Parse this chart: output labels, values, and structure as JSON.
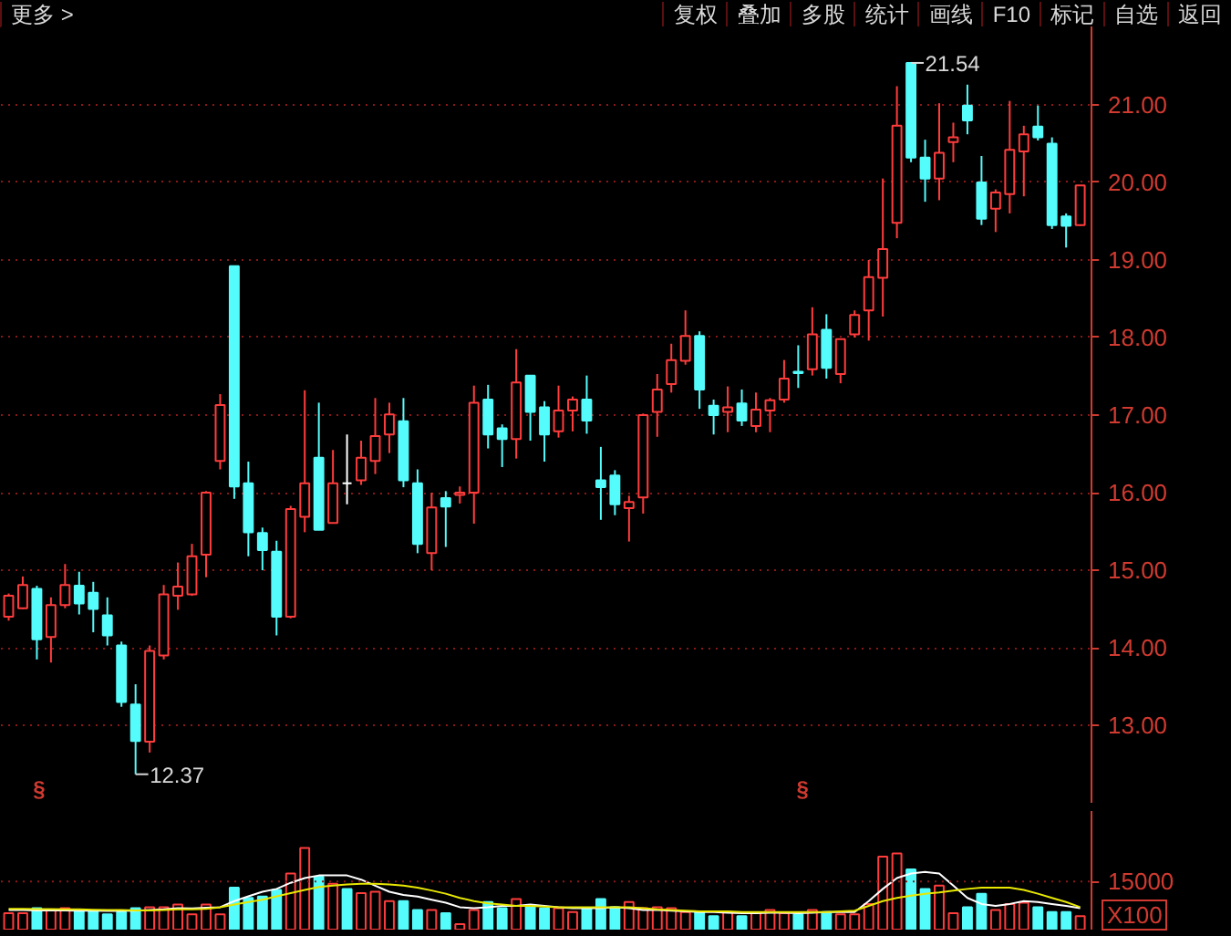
{
  "chart_data": [
    {
      "type": "other",
      "annotations": [
        "更多 >",
        "复权",
        "叠加",
        "多股",
        "统计",
        "画线",
        "F10",
        "标记",
        "自选",
        "返回"
      ]
    },
    {
      "type": "candlestick",
      "tick_labels": "y",
      "grid": "y",
      "categories": [
        null,
        null,
        null,
        null,
        null,
        null,
        null,
        null,
        null,
        null,
        null,
        null,
        null,
        null,
        null,
        null,
        null,
        null,
        null,
        null,
        null,
        null,
        null,
        null,
        null,
        null,
        null,
        null,
        null,
        null,
        null,
        null,
        null,
        null,
        null,
        null,
        null,
        null,
        null,
        null,
        null,
        null,
        null,
        null,
        null,
        null,
        null,
        null,
        null,
        null,
        null,
        null,
        null,
        null,
        null,
        null,
        null,
        null,
        null,
        null,
        null,
        null,
        null,
        null,
        null,
        null,
        null,
        null,
        null,
        null,
        null,
        null,
        null,
        null,
        null,
        null,
        null
      ],
      "ylim": [
        11.99,
        22.01
      ],
      "yticks": [
        {
          "value": 13,
          "label": "13.00"
        },
        {
          "value": 14,
          "label": "14.00"
        },
        {
          "value": 15,
          "label": "15.00"
        },
        {
          "value": 16,
          "label": "16.00"
        },
        {
          "value": 17,
          "label": "17.00"
        },
        {
          "value": 18,
          "label": "18.00"
        },
        {
          "value": 19,
          "label": "19.00"
        },
        {
          "value": 20,
          "label": "20.00"
        },
        {
          "value": 21,
          "label": "21.00"
        }
      ],
      "ohlc": [
        [
          14.4,
          14.7,
          14.35,
          14.67
        ],
        [
          14.51,
          14.92,
          14.5,
          14.81
        ],
        [
          14.76,
          14.8,
          13.85,
          14.11
        ],
        [
          14.14,
          14.65,
          13.81,
          14.55
        ],
        [
          14.55,
          15.08,
          14.51,
          14.81
        ],
        [
          14.8,
          14.98,
          14.43,
          14.57
        ],
        [
          14.71,
          14.85,
          14.2,
          14.5
        ],
        [
          14.42,
          14.65,
          14.03,
          14.16
        ],
        [
          14.03,
          14.08,
          13.24,
          13.3
        ],
        [
          13.27,
          13.53,
          12.37,
          12.8
        ],
        [
          12.79,
          14.03,
          12.65,
          13.96
        ],
        [
          13.9,
          14.81,
          13.85,
          14.69
        ],
        [
          14.67,
          15.1,
          14.49,
          14.79
        ],
        [
          14.69,
          15.34,
          14.67,
          15.18
        ],
        [
          15.2,
          16.02,
          14.91,
          16.0
        ],
        [
          16.41,
          17.27,
          16.3,
          17.13
        ],
        [
          18.92,
          18.92,
          15.92,
          16.08
        ],
        [
          16.12,
          16.4,
          15.18,
          15.49
        ],
        [
          15.48,
          15.55,
          15.0,
          15.26
        ],
        [
          15.24,
          15.38,
          14.16,
          14.4
        ],
        [
          14.4,
          15.83,
          14.38,
          15.79
        ],
        [
          15.69,
          17.32,
          15.49,
          16.12
        ],
        [
          16.45,
          17.16,
          15.52,
          15.52
        ],
        [
          15.61,
          16.55,
          15.61,
          16.12
        ],
        [
          16.12,
          16.75,
          15.85,
          16.12
        ],
        [
          16.16,
          16.67,
          16.1,
          16.45
        ],
        [
          16.41,
          17.22,
          16.24,
          16.73
        ],
        [
          16.75,
          17.16,
          16.51,
          17.01
        ],
        [
          16.92,
          17.22,
          16.07,
          16.16
        ],
        [
          16.12,
          16.3,
          15.22,
          15.34
        ],
        [
          15.22,
          16.0,
          15.0,
          15.81
        ],
        [
          15.93,
          16.02,
          15.3,
          15.82
        ],
        [
          15.97,
          16.08,
          15.86,
          16.0
        ],
        [
          16.0,
          17.38,
          15.6,
          17.16
        ],
        [
          17.2,
          17.39,
          16.57,
          16.75
        ],
        [
          16.83,
          16.88,
          16.33,
          16.69
        ],
        [
          16.69,
          17.85,
          16.44,
          17.42
        ],
        [
          17.51,
          17.51,
          16.67,
          17.04
        ],
        [
          17.1,
          17.18,
          16.4,
          16.75
        ],
        [
          16.79,
          17.38,
          16.71,
          17.06
        ],
        [
          17.06,
          17.24,
          16.79,
          17.2
        ],
        [
          17.2,
          17.51,
          16.76,
          16.93
        ],
        [
          16.16,
          16.59,
          15.65,
          16.07
        ],
        [
          16.22,
          16.29,
          15.71,
          15.85
        ],
        [
          15.8,
          15.96,
          15.37,
          15.88
        ],
        [
          15.94,
          17.02,
          15.73,
          17.0
        ],
        [
          17.04,
          17.53,
          16.72,
          17.33
        ],
        [
          17.4,
          17.92,
          17.29,
          17.71
        ],
        [
          17.7,
          18.35,
          17.65,
          18.02
        ],
        [
          18.02,
          18.08,
          17.08,
          17.33
        ],
        [
          17.12,
          17.2,
          16.75,
          17.0
        ],
        [
          17.04,
          17.37,
          16.78,
          17.1
        ],
        [
          17.15,
          17.33,
          16.86,
          16.93
        ],
        [
          16.86,
          17.29,
          16.78,
          17.07
        ],
        [
          17.06,
          17.22,
          16.78,
          17.19
        ],
        [
          17.2,
          17.71,
          17.16,
          17.47
        ],
        [
          17.56,
          17.9,
          17.35,
          17.54
        ],
        [
          17.59,
          18.39,
          17.51,
          18.04
        ],
        [
          18.1,
          18.3,
          17.47,
          17.61
        ],
        [
          17.53,
          17.98,
          17.41,
          17.98
        ],
        [
          18.04,
          18.35,
          18.0,
          18.29
        ],
        [
          18.35,
          19.0,
          17.96,
          18.78
        ],
        [
          18.77,
          20.05,
          18.27,
          19.14
        ],
        [
          19.48,
          21.24,
          19.28,
          20.73
        ],
        [
          21.54,
          21.54,
          20.26,
          20.32
        ],
        [
          20.32,
          20.55,
          19.75,
          20.05
        ],
        [
          20.05,
          21.02,
          19.77,
          20.38
        ],
        [
          20.52,
          20.77,
          20.26,
          20.58
        ],
        [
          20.99,
          21.26,
          20.62,
          20.8
        ],
        [
          20.0,
          20.34,
          19.45,
          19.53
        ],
        [
          19.66,
          19.91,
          19.36,
          19.87
        ],
        [
          19.85,
          21.05,
          19.6,
          20.42
        ],
        [
          20.4,
          20.73,
          19.82,
          20.62
        ],
        [
          20.72,
          20.99,
          20.54,
          20.58
        ],
        [
          20.5,
          20.58,
          19.4,
          19.45
        ],
        [
          19.56,
          19.6,
          19.16,
          19.44
        ],
        [
          19.45,
          19.96,
          19.44,
          19.96
        ]
      ],
      "colors": [
        "#ff3c3c",
        "#ff3c3c",
        "#54fcfc",
        "#ff3c3c",
        "#ff3c3c",
        "#54fcfc",
        "#54fcfc",
        "#54fcfc",
        "#54fcfc",
        "#54fcfc",
        "#ff3c3c",
        "#ff3c3c",
        "#ff3c3c",
        "#ff3c3c",
        "#ff3c3c",
        "#ff3c3c",
        "#54fcfc",
        "#54fcfc",
        "#54fcfc",
        "#54fcfc",
        "#ff3c3c",
        "#ff3c3c",
        "#54fcfc",
        "#ff3c3c",
        "#ffffff",
        "#ff3c3c",
        "#ff3c3c",
        "#ff3c3c",
        "#54fcfc",
        "#54fcfc",
        "#ff3c3c",
        "#54fcfc",
        "#ff3c3c",
        "#ff3c3c",
        "#54fcfc",
        "#54fcfc",
        "#ff3c3c",
        "#54fcfc",
        "#54fcfc",
        "#ff3c3c",
        "#ff3c3c",
        "#54fcfc",
        "#54fcfc",
        "#54fcfc",
        "#ff3c3c",
        "#ff3c3c",
        "#ff3c3c",
        "#ff3c3c",
        "#ff3c3c",
        "#54fcfc",
        "#54fcfc",
        "#ff3c3c",
        "#54fcfc",
        "#ff3c3c",
        "#ff3c3c",
        "#ff3c3c",
        "#54fcfc",
        "#ff3c3c",
        "#54fcfc",
        "#ff3c3c",
        "#ff3c3c",
        "#ff3c3c",
        "#ff3c3c",
        "#ff3c3c",
        "#54fcfc",
        "#54fcfc",
        "#ff3c3c",
        "#ff3c3c",
        "#54fcfc",
        "#54fcfc",
        "#ff3c3c",
        "#ff3c3c",
        "#ff3c3c",
        "#54fcfc",
        "#54fcfc",
        "#54fcfc",
        "#ff3c3c"
      ],
      "annotations": [
        "12.37",
        "21.54",
        "§",
        "§"
      ]
    },
    {
      "type": "bar",
      "tick_labels": "y",
      "ref_lines": [
        {
          "axis": "y",
          "value": 15000
        }
      ],
      "categories": [
        null,
        null,
        null,
        null,
        null,
        null,
        null,
        null,
        null,
        null,
        null,
        null,
        null,
        null,
        null,
        null,
        null,
        null,
        null,
        null,
        null,
        null,
        null,
        null,
        null,
        null,
        null,
        null,
        null,
        null,
        null,
        null,
        null,
        null,
        null,
        null,
        null,
        null,
        null,
        null,
        null,
        null,
        null,
        null,
        null,
        null,
        null,
        null,
        null,
        null,
        null,
        null,
        null,
        null,
        null,
        null,
        null,
        null,
        null,
        null,
        null,
        null,
        null,
        null,
        null,
        null,
        null,
        null,
        null,
        null,
        null,
        null,
        null,
        null,
        null,
        null,
        null
      ],
      "ylim": [
        0,
        37000
      ],
      "yticks": [
        15000
      ],
      "series": [
        {
          "type": "bar",
          "values": [
            5100,
            5100,
            6700,
            6100,
            6700,
            5700,
            5700,
            4800,
            5500,
            6700,
            7000,
            7000,
            7800,
            4800,
            7800,
            4800,
            13100,
            9900,
            10300,
            12400,
            17500,
            25500,
            16500,
            14300,
            12700,
            11400,
            11800,
            8900,
            8900,
            6100,
            6100,
            5100,
            1700,
            6100,
            8600,
            6700,
            9500,
            7400,
            6700,
            6700,
            5500,
            6700,
            9500,
            7000,
            8600,
            6700,
            7000,
            6700,
            5500,
            5500,
            4200,
            5500,
            4200,
            5100,
            6100,
            5100,
            4800,
            6100,
            5500,
            4800,
            4800,
            8000,
            22800,
            23800,
            18800,
            12700,
            13700,
            5100,
            7000,
            11200,
            6100,
            8000,
            8400,
            7000,
            5500,
            5500,
            4200
          ],
          "colors": [
            "#ff3c3c",
            "#ff3c3c",
            "#54fcfc",
            "#ff3c3c",
            "#ff3c3c",
            "#54fcfc",
            "#54fcfc",
            "#54fcfc",
            "#54fcfc",
            "#54fcfc",
            "#ff3c3c",
            "#ff3c3c",
            "#ff3c3c",
            "#ff3c3c",
            "#ff3c3c",
            "#ff3c3c",
            "#54fcfc",
            "#54fcfc",
            "#54fcfc",
            "#54fcfc",
            "#ff3c3c",
            "#ff3c3c",
            "#54fcfc",
            "#ff3c3c",
            "#54fcfc",
            "#ff3c3c",
            "#ff3c3c",
            "#ff3c3c",
            "#54fcfc",
            "#54fcfc",
            "#ff3c3c",
            "#54fcfc",
            "#ff3c3c",
            "#ff3c3c",
            "#54fcfc",
            "#54fcfc",
            "#ff3c3c",
            "#54fcfc",
            "#54fcfc",
            "#ff3c3c",
            "#ff3c3c",
            "#54fcfc",
            "#54fcfc",
            "#54fcfc",
            "#ff3c3c",
            "#ff3c3c",
            "#ff3c3c",
            "#ff3c3c",
            "#ff3c3c",
            "#54fcfc",
            "#54fcfc",
            "#ff3c3c",
            "#54fcfc",
            "#ff3c3c",
            "#ff3c3c",
            "#ff3c3c",
            "#54fcfc",
            "#ff3c3c",
            "#54fcfc",
            "#ff3c3c",
            "#ff3c3c",
            "#ff3c3c",
            "#ff3c3c",
            "#ff3c3c",
            "#54fcfc",
            "#54fcfc",
            "#ff3c3c",
            "#ff3c3c",
            "#54fcfc",
            "#54fcfc",
            "#ff3c3c",
            "#ff3c3c",
            "#ff3c3c",
            "#54fcfc",
            "#54fcfc",
            "#54fcfc",
            "#ff3c3c"
          ]
        },
        {
          "type": "line",
          "color": "#ffffff",
          "values": [
            6100,
            6100,
            6000,
            6000,
            6000,
            5900,
            5900,
            5800,
            5800,
            5900,
            6100,
            6300,
            6700,
            6600,
            6800,
            7000,
            8900,
            10400,
            11800,
            12700,
            14600,
            16100,
            16900,
            16900,
            16900,
            15600,
            13700,
            11800,
            10800,
            10300,
            9300,
            8400,
            7000,
            6700,
            7000,
            7400,
            7400,
            7800,
            7400,
            7000,
            6700,
            6700,
            6700,
            7000,
            6700,
            6100,
            6100,
            5900,
            5700,
            5500,
            5500,
            5300,
            5100,
            5100,
            5300,
            5300,
            5100,
            5300,
            5500,
            5500,
            5500,
            8900,
            12700,
            16100,
            17500,
            18000,
            17500,
            13700,
            9900,
            8000,
            7400,
            8000,
            8900,
            8600,
            8000,
            7400,
            6700
          ]
        },
        {
          "type": "line",
          "color": "#e8e800",
          "values": [
            6500,
            6500,
            6400,
            6400,
            6300,
            6300,
            6200,
            6100,
            6100,
            6000,
            6000,
            6100,
            6300,
            6300,
            6500,
            7000,
            7800,
            8600,
            9300,
            10400,
            11400,
            12400,
            13300,
            13700,
            14100,
            14300,
            14300,
            14100,
            13700,
            13100,
            12200,
            11200,
            9900,
            8900,
            8200,
            7800,
            7400,
            7400,
            7200,
            7000,
            7000,
            7000,
            7000,
            7000,
            7000,
            6700,
            6300,
            6100,
            5900,
            5700,
            5700,
            5700,
            5500,
            5500,
            5500,
            5500,
            5500,
            5500,
            5500,
            5700,
            5900,
            7400,
            8900,
            9900,
            10600,
            11200,
            11600,
            12200,
            12700,
            13100,
            13100,
            13100,
            12400,
            11200,
            9900,
            8600,
            7000
          ]
        }
      ],
      "annotations": [
        "X100"
      ]
    }
  ]
}
